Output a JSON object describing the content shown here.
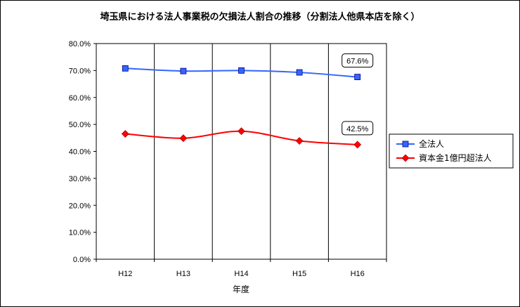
{
  "chart_data": {
    "type": "line",
    "title": "埼玉県における法人事業税の欠損法人割合の推移（分割法人他県本店を除く）",
    "xlabel": "年度",
    "ylabel": "",
    "categories": [
      "H12",
      "H13",
      "H14",
      "H15",
      "H16"
    ],
    "ylim": [
      0,
      80
    ],
    "yticks": [
      "0.0%",
      "10.0%",
      "20.0%",
      "30.0%",
      "40.0%",
      "50.0%",
      "60.0%",
      "70.0%",
      "80.0%"
    ],
    "grid": "vertical",
    "legend_position": "right",
    "series": [
      {
        "name": "全法人",
        "values": [
          70.8,
          69.8,
          70.0,
          69.3,
          67.6
        ],
        "color": "#3366ff",
        "marker": "square"
      },
      {
        "name": "資本金1億円超法人",
        "values": [
          46.5,
          44.9,
          47.5,
          43.9,
          42.5
        ],
        "color": "#ff0000",
        "marker": "diamond"
      }
    ],
    "annotations": [
      {
        "series": 0,
        "index": 4,
        "text": "67.6%"
      },
      {
        "series": 1,
        "index": 4,
        "text": "42.5%"
      }
    ]
  }
}
